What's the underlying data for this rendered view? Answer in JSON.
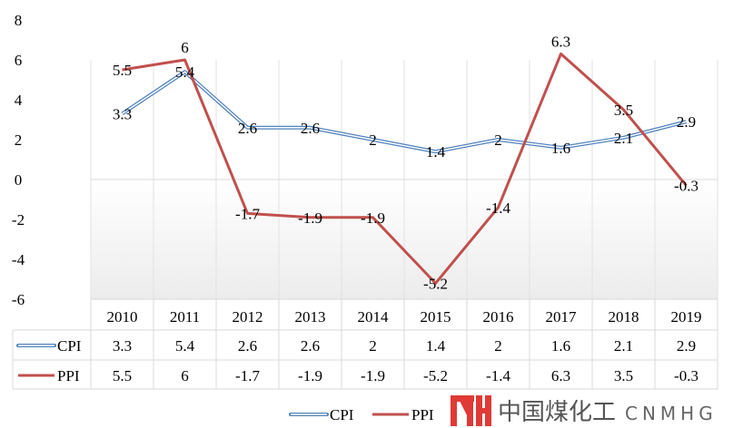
{
  "chart_data": {
    "type": "line",
    "title": "",
    "xlabel": "",
    "ylabel": "",
    "categories": [
      "2010",
      "2011",
      "2012",
      "2013",
      "2014",
      "2015",
      "2016",
      "2017",
      "2018",
      "2019"
    ],
    "series": [
      {
        "name": "CPI",
        "color": "#4f81bd",
        "values": [
          3.3,
          5.4,
          2.6,
          2.6,
          2,
          1.4,
          2,
          1.6,
          2.1,
          2.9
        ],
        "labels": [
          "3.3",
          "5.4",
          "2.6",
          "2.6",
          "2",
          "1.4",
          "2",
          "1.6",
          "2.1",
          "2.9"
        ]
      },
      {
        "name": "PPI",
        "color": "#c0504d",
        "values": [
          5.5,
          6,
          -1.7,
          -1.9,
          -1.9,
          -5.2,
          -1.4,
          6.3,
          3.5,
          -0.3
        ],
        "labels": [
          "5.5",
          "6",
          "-1.7",
          "-1.9",
          "-1.9",
          "-5.2",
          "-1.4",
          "6.3",
          "3.5",
          "-0.3"
        ]
      }
    ],
    "ylim": [
      -6,
      8
    ],
    "yticks": [
      "8",
      "6",
      "4",
      "2",
      "0",
      "-2",
      "-4",
      "-6"
    ],
    "grid": "vertical",
    "legend": "bottom",
    "data_table": true
  },
  "watermark": {
    "brand_cn": "中国煤化工",
    "brand_en": "CNMHG"
  }
}
